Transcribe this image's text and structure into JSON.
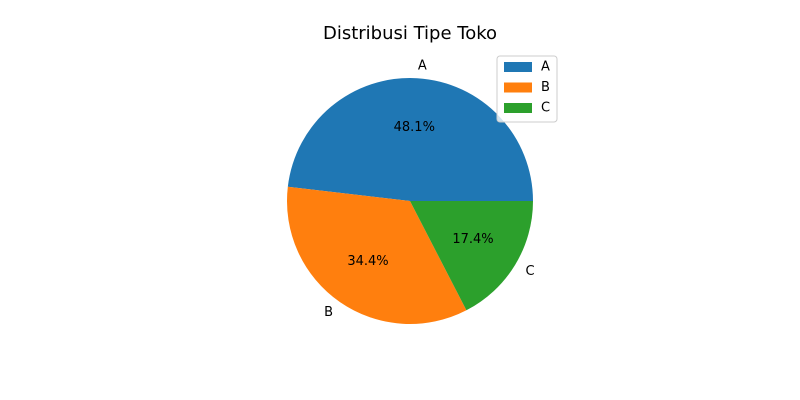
{
  "chart_data": {
    "type": "pie",
    "title": "Distribusi Tipe Toko",
    "categories": [
      "A",
      "B",
      "C"
    ],
    "values": [
      48.1,
      34.4,
      17.4
    ],
    "percent_labels": [
      "48.1%",
      "34.4%",
      "17.4%"
    ],
    "colors": [
      "#1f77b4",
      "#ff7f0e",
      "#2ca02c"
    ],
    "legend": {
      "position": "upper-right",
      "entries": [
        "A",
        "B",
        "C"
      ]
    },
    "start_angle_deg": 0,
    "direction": "counterclockwise"
  }
}
